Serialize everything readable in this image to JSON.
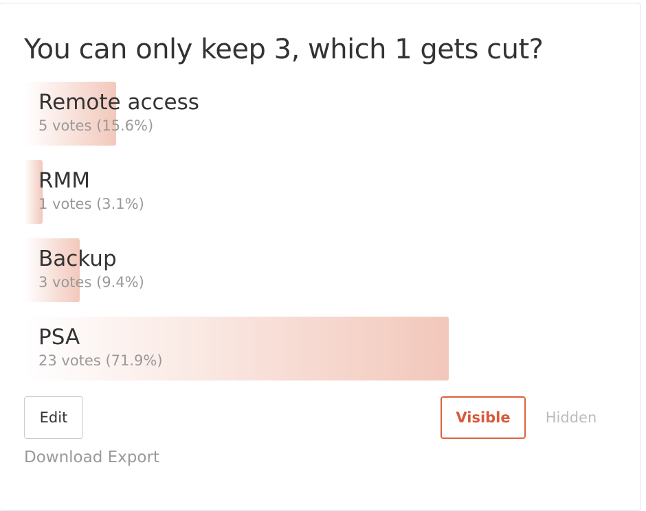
{
  "poll": {
    "title": "You can only keep 3, which 1 gets cut?",
    "options": [
      {
        "label": "Remote access",
        "result": "5 votes (15.6%)",
        "percent": 15.6
      },
      {
        "label": "RMM",
        "result": "1 votes (3.1%)",
        "percent": 3.1
      },
      {
        "label": "Backup",
        "result": "3 votes (9.4%)",
        "percent": 9.4
      },
      {
        "label": "PSA",
        "result": "23 votes (71.9%)",
        "percent": 71.9
      }
    ],
    "buttons": {
      "edit": "Edit",
      "visible": "Visible",
      "hidden": "Hidden",
      "export": "Download Export"
    }
  }
}
